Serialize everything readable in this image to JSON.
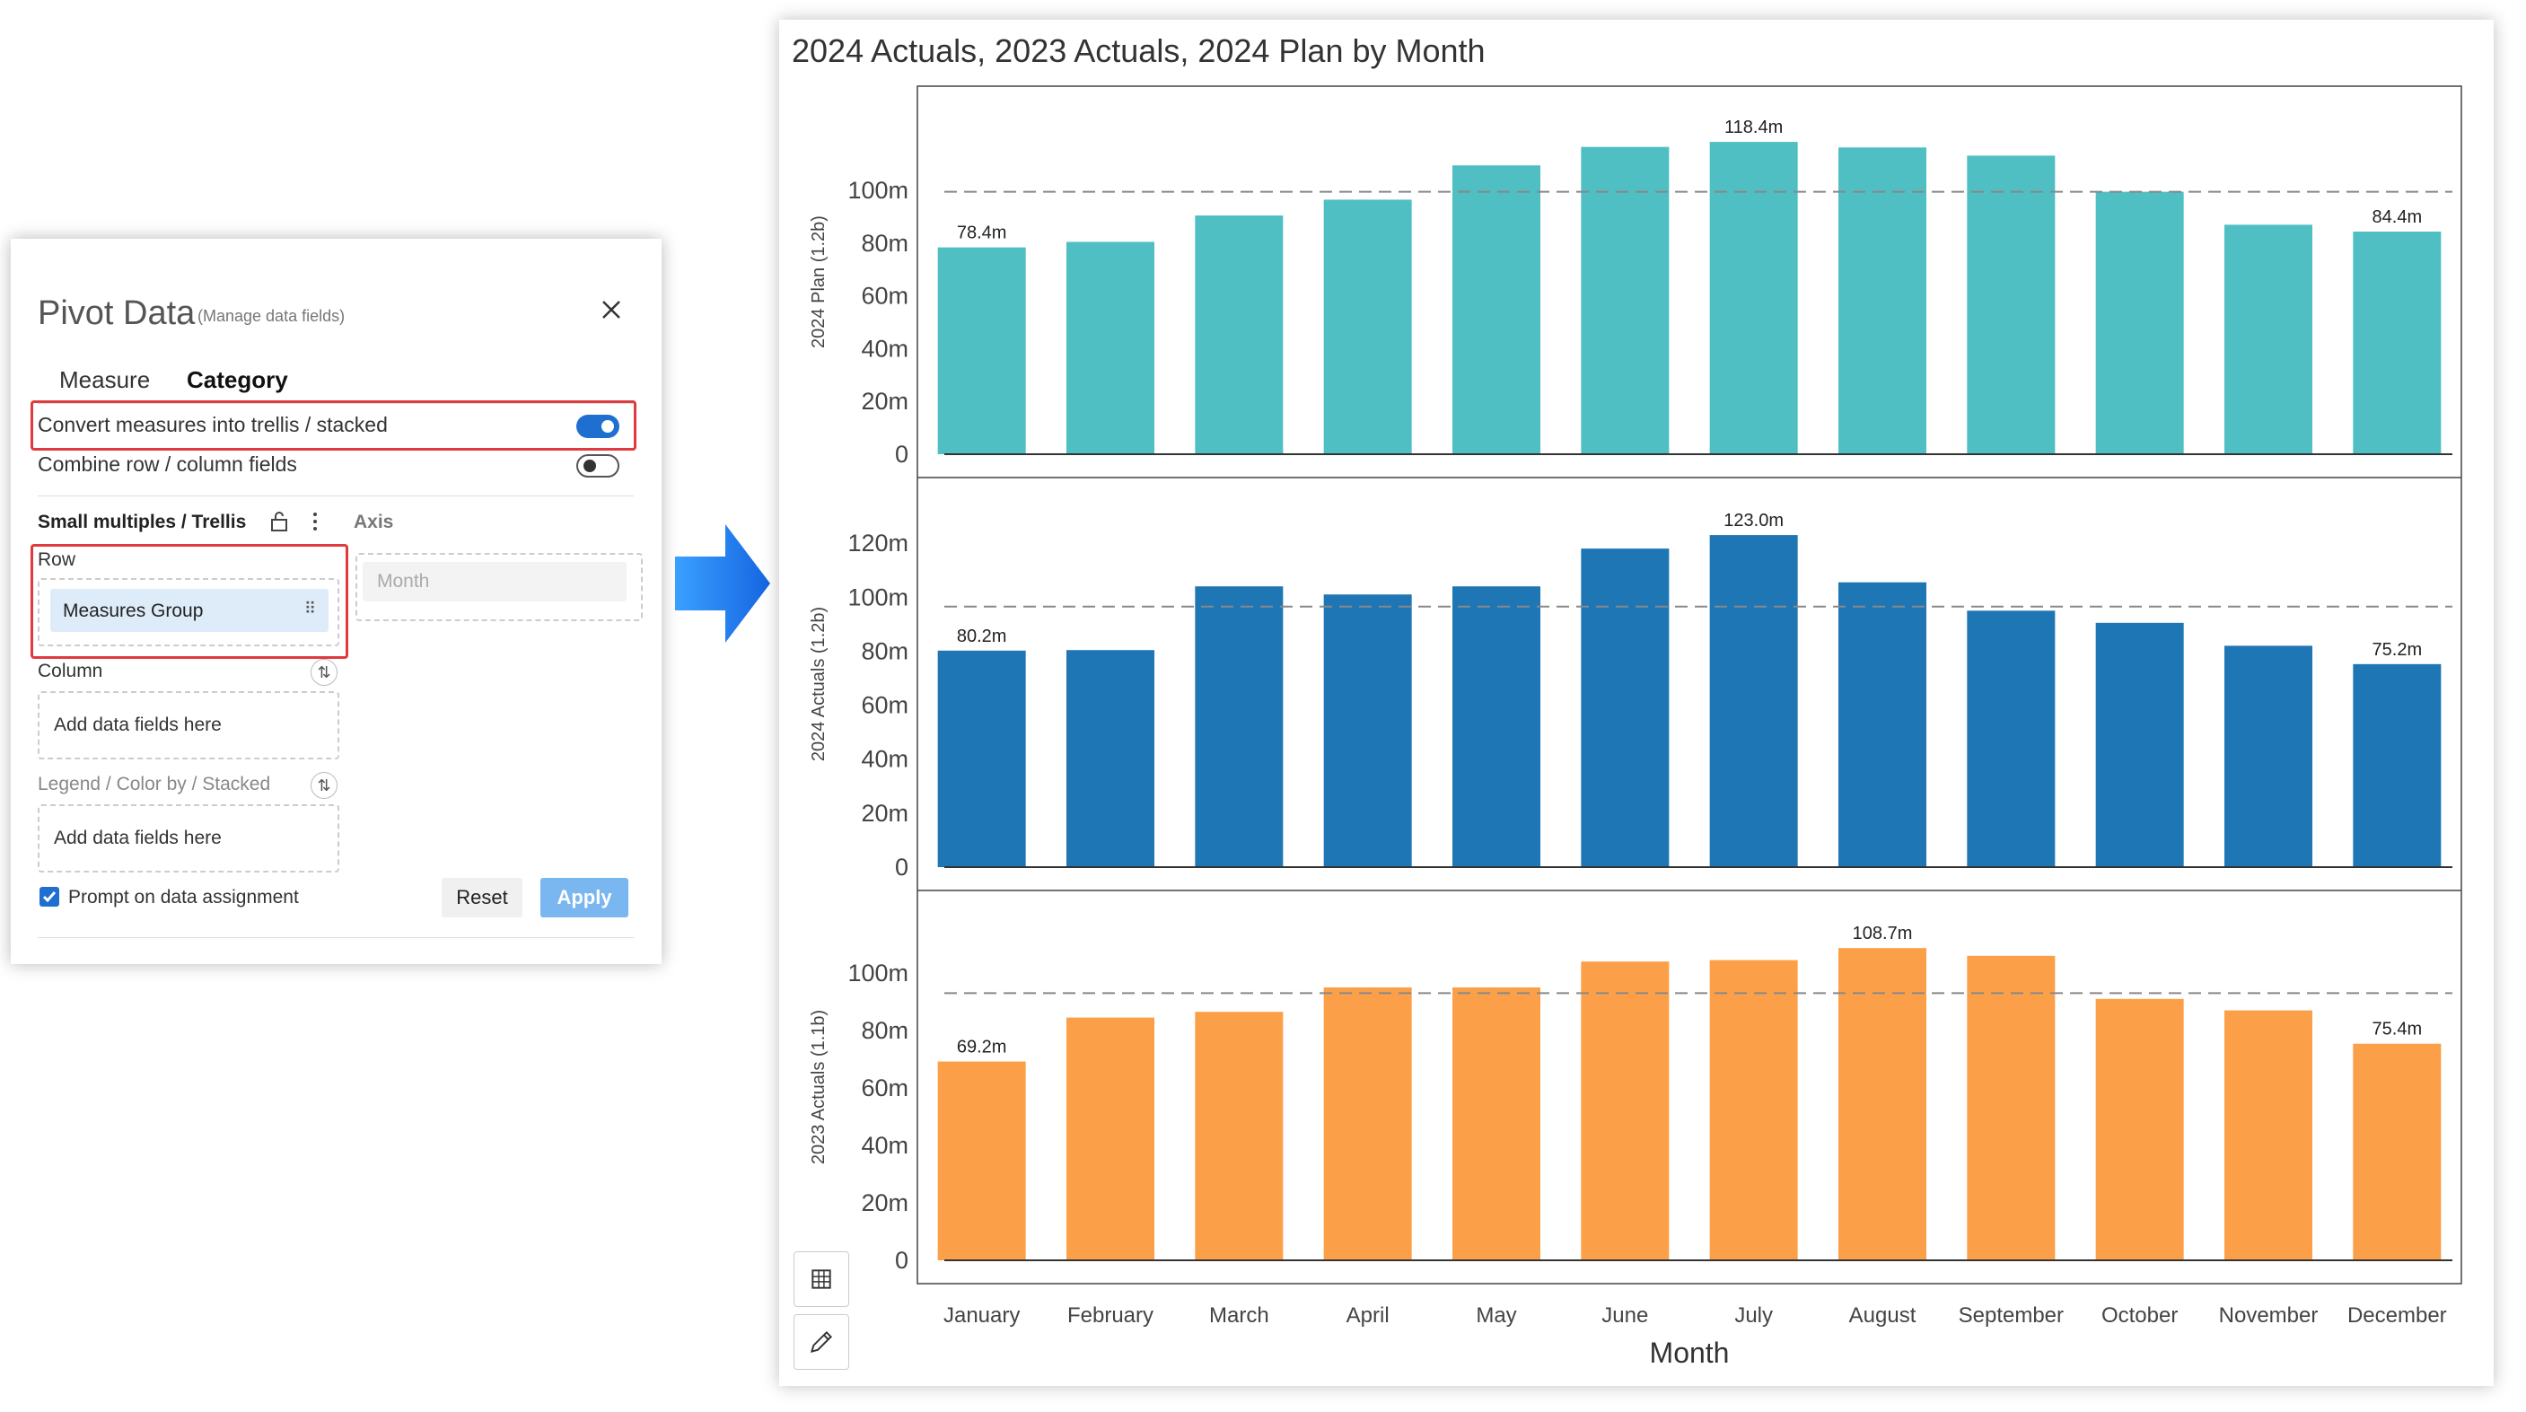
{
  "pivot": {
    "title": "Pivot Data",
    "subtitle": "(Manage data fields)",
    "tabs": [
      "Measure",
      "Category"
    ],
    "active_tab": "Category",
    "convert_label": "Convert measures into trellis / stacked",
    "convert_on": true,
    "combine_label": "Combine row / column fields",
    "combine_on": false,
    "small_multiples_label": "Small multiples / Trellis",
    "axis_label": "Axis",
    "row_label": "Row",
    "row_chip": "Measures Group",
    "axis_field": "Month",
    "column_label": "Column",
    "column_placeholder": "Add data fields here",
    "legend_label": "Legend / Color by / Stacked",
    "legend_placeholder": "Add data fields here",
    "prompt_label": "Prompt on data assignment",
    "prompt_checked": true,
    "reset_label": "Reset",
    "apply_label": "Apply"
  },
  "chart_data": {
    "type": "bar",
    "title": "2024 Actuals, 2023 Actuals, 2024 Plan by Month",
    "xlabel": "Month",
    "categories": [
      "January",
      "February",
      "March",
      "April",
      "May",
      "June",
      "July",
      "August",
      "September",
      "October",
      "November",
      "December"
    ],
    "panels": [
      {
        "ylabel": "2024 Plan  (1.2b)",
        "color": "#4fbfc3",
        "ylim": [
          0,
          130
        ],
        "yticks": [
          0,
          20,
          40,
          60,
          80,
          100
        ],
        "ytick_labels": [
          "0",
          "20m",
          "40m",
          "60m",
          "80m",
          "100m"
        ],
        "reference_line": 99.5,
        "values": [
          78.4,
          80.5,
          90.5,
          96.5,
          109.5,
          116.5,
          118.4,
          116.3,
          113.2,
          99.5,
          87,
          84.4
        ],
        "labels": [
          "78.4m",
          "",
          "",
          "",
          "",
          "",
          "118.4m",
          "",
          "",
          "",
          "",
          "84.4m"
        ]
      },
      {
        "ylabel": "2024 Actuals  (1.2b)",
        "color": "#1f76b4",
        "ylim": [
          0,
          135
        ],
        "yticks": [
          0,
          20,
          40,
          60,
          80,
          100,
          120
        ],
        "ytick_labels": [
          "0",
          "20m",
          "40m",
          "60m",
          "80m",
          "100m",
          "120m"
        ],
        "reference_line": 96.5,
        "values": [
          80.2,
          80.4,
          104,
          101,
          104,
          118,
          123.0,
          105.5,
          95,
          90.5,
          82,
          75.2
        ],
        "labels": [
          "80.2m",
          "",
          "",
          "",
          "",
          "",
          "123.0m",
          "",
          "",
          "",
          "",
          "75.2m"
        ]
      },
      {
        "ylabel": "2023 Actuals  (1.1b)",
        "color": "#fba048",
        "ylim": [
          0,
          120
        ],
        "yticks": [
          0,
          20,
          40,
          60,
          80,
          100
        ],
        "ytick_labels": [
          "0",
          "20m",
          "40m",
          "60m",
          "80m",
          "100m"
        ],
        "reference_line": 93,
        "values": [
          69.2,
          84.5,
          86.5,
          95,
          95,
          104,
          104.5,
          108.7,
          106,
          91,
          87,
          75.4
        ],
        "labels": [
          "69.2m",
          "",
          "",
          "",
          "",
          "",
          "",
          "108.7m",
          "",
          "",
          "",
          "75.4m"
        ]
      }
    ]
  },
  "icons": [
    "close-icon",
    "lock-icon",
    "more-icon",
    "swap-icon",
    "grip-icon",
    "checkbox-icon",
    "table-icon",
    "pencil-icon",
    "arrow-right-icon"
  ]
}
